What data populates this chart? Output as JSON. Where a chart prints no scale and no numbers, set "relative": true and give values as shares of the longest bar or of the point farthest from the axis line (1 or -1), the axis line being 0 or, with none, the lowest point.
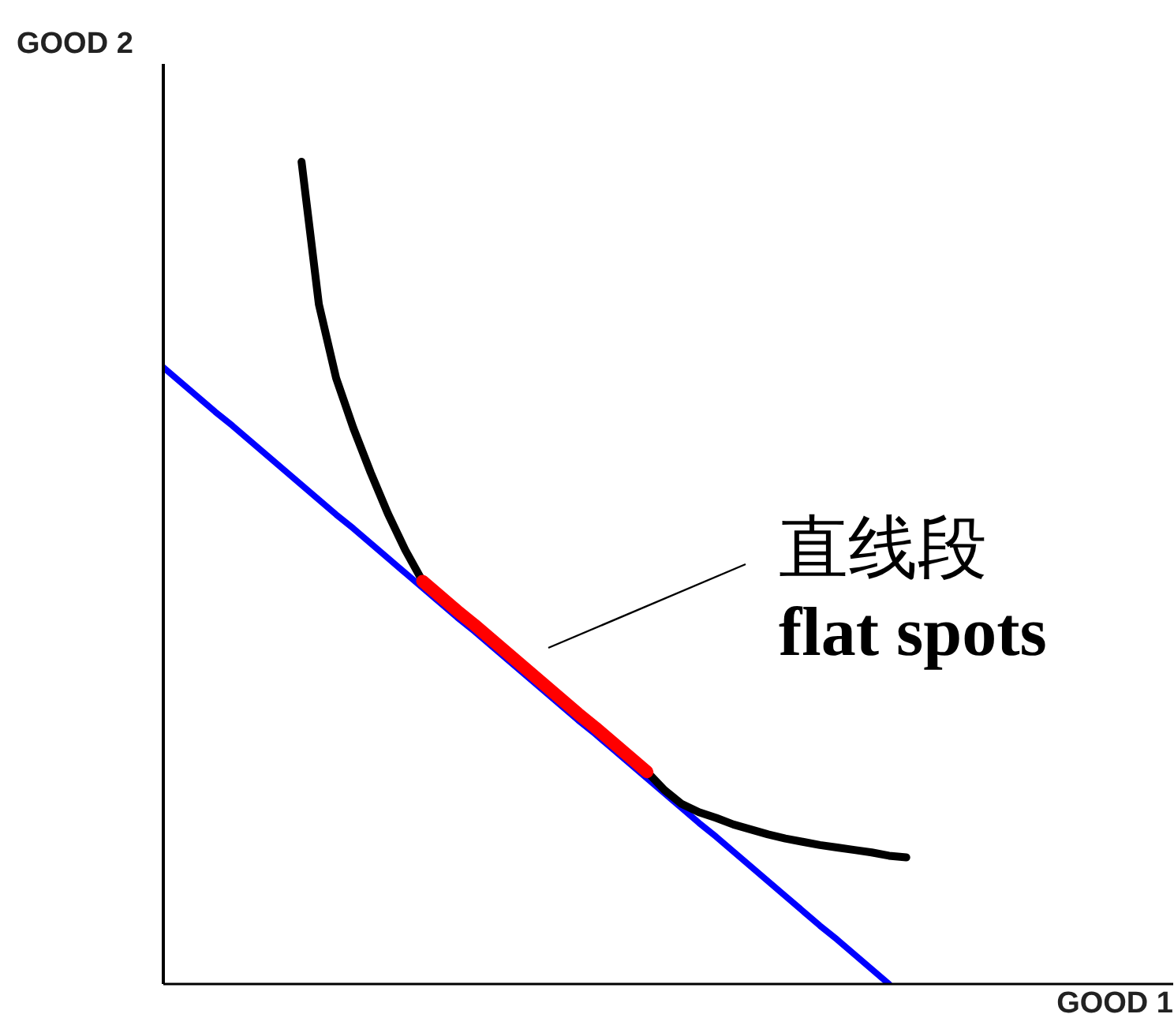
{
  "chart_data": {
    "type": "line",
    "xlabel": "GOOD 1",
    "ylabel": "GOOD 2",
    "annotations": [
      "直线段",
      "flat spots"
    ],
    "relative": true,
    "categories": [
      null,
      null,
      null,
      null,
      null,
      null,
      null,
      null,
      null,
      null,
      null,
      null,
      null,
      null,
      null,
      null,
      null,
      null,
      null,
      null,
      null,
      null,
      null,
      null,
      null,
      null,
      null,
      null,
      null,
      null,
      null,
      null,
      null,
      null,
      null,
      null,
      null,
      null,
      null,
      null,
      null,
      null,
      null,
      null
    ],
    "series": [
      {
        "color": "#0000ff",
        "values": [
          0.75,
          0.732,
          0.714,
          0.696,
          0.679,
          0.661,
          0.643,
          0.625,
          0.607,
          0.589,
          0.571,
          0.554,
          0.536,
          0.518,
          0.5,
          0.482,
          0.464,
          0.446,
          0.429,
          0.411,
          0.393,
          0.375,
          0.357,
          0.339,
          0.321,
          0.304,
          0.286,
          0.268,
          0.25,
          0.232,
          0.214,
          0.196,
          0.179,
          0.161,
          0.143,
          0.125,
          0.107,
          0.089,
          0.071,
          0.054,
          0.036,
          0.018,
          0,
          null
        ]
      },
      {
        "color": "#000000",
        "values": [
          null,
          null,
          null,
          null,
          null,
          null,
          null,
          null,
          1,
          0.827,
          0.737,
          0.676,
          0.622,
          0.572,
          0.528,
          0.49,
          null,
          null,
          null,
          null,
          null,
          null,
          null,
          null,
          null,
          null,
          null,
          null,
          0.258,
          0.236,
          0.219,
          0.209,
          0.202,
          0.194,
          0.188,
          0.182,
          0.177,
          0.173,
          0.169,
          0.166,
          0.163,
          0.16,
          0.156,
          0.154
        ]
      },
      {
        "color": "#ff0000",
        "values": [
          null,
          null,
          null,
          null,
          null,
          null,
          null,
          null,
          null,
          null,
          null,
          null,
          null,
          null,
          null,
          0.49,
          0.472,
          0.454,
          0.437,
          0.419,
          0.401,
          0.383,
          0.365,
          0.347,
          0.329,
          0.312,
          0.294,
          0.276,
          0.258,
          null,
          null,
          null,
          null,
          null,
          null,
          null,
          null,
          null,
          null,
          null,
          null,
          null,
          null,
          null
        ]
      }
    ]
  }
}
